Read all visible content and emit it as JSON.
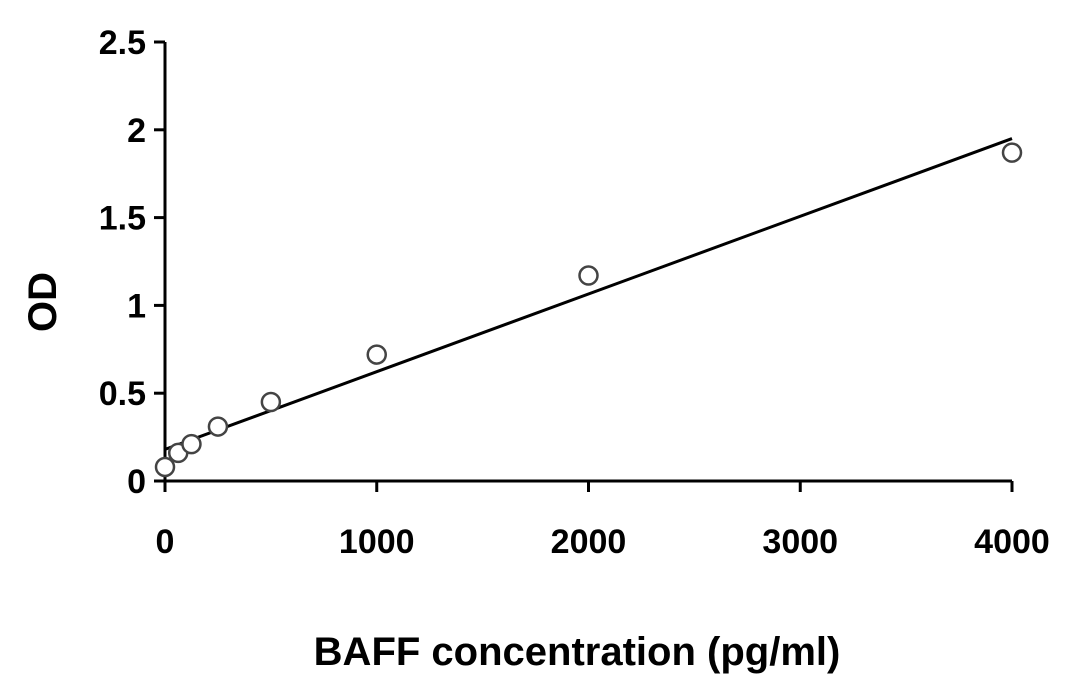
{
  "chart_data": {
    "type": "scatter",
    "xlabel": "BAFF concentration (pg/ml)",
    "ylabel": "OD",
    "xlim": [
      0,
      4000
    ],
    "ylim": [
      0,
      2.5
    ],
    "x_ticks": [
      0,
      1000,
      2000,
      3000,
      4000
    ],
    "y_ticks": [
      0,
      0.5,
      1,
      1.5,
      2,
      2.5
    ],
    "x_tick_labels": [
      "0",
      "1000",
      "2000",
      "3000",
      "4000"
    ],
    "y_tick_labels": [
      "0",
      "0.5",
      "1",
      "1.5",
      "2",
      "2.5"
    ],
    "grid": false,
    "legend": false,
    "points": [
      {
        "x": 0,
        "y": 0.08
      },
      {
        "x": 62.5,
        "y": 0.16
      },
      {
        "x": 125,
        "y": 0.21
      },
      {
        "x": 250,
        "y": 0.31
      },
      {
        "x": 500,
        "y": 0.45
      },
      {
        "x": 1000,
        "y": 0.72
      },
      {
        "x": 2000,
        "y": 1.17
      },
      {
        "x": 4000,
        "y": 1.87
      }
    ],
    "trendline": {
      "type": "linear",
      "from": {
        "x": 0,
        "y": 0.18
      },
      "to": {
        "x": 4000,
        "y": 1.95
      }
    }
  }
}
